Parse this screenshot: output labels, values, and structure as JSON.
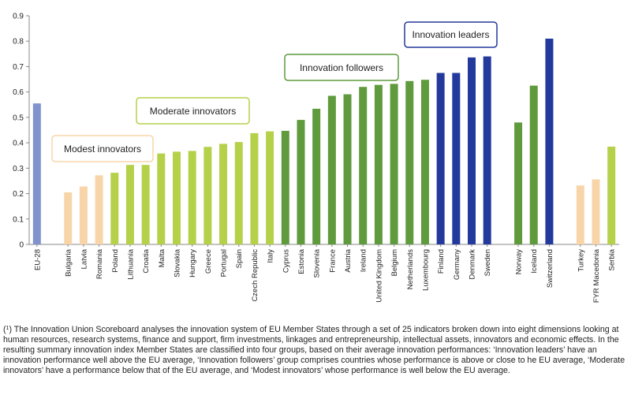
{
  "chart_data": {
    "type": "bar",
    "ylim": [
      0,
      0.9
    ],
    "yticks": [
      0,
      0.1,
      0.2,
      0.3,
      0.4,
      0.5,
      0.6,
      0.7,
      0.8,
      0.9
    ],
    "ytick_labels": [
      "0",
      "0.1",
      "0.2",
      "0.3",
      "0.4",
      "0.5",
      "0.6",
      "0.7",
      "0.8",
      "0.9"
    ],
    "grid": false,
    "colors": {
      "eu_average": "#8093cc",
      "modest_innovators": "#f8d5a8",
      "moderate_innovators": "#b5d14a",
      "innovation_followers": "#5f9a3d",
      "innovation_leaders": "#23399b"
    },
    "group_labels": {
      "modest_innovators": "Modest innovators",
      "moderate_innovators": "Moderate innovators",
      "innovation_followers": "Innovation followers",
      "innovation_leaders": "Innovation leaders"
    },
    "categories": [
      "EU-28",
      "",
      "Bulgaria",
      "Latvia",
      "Romania",
      "Poland",
      "Lithuania",
      "Croatia",
      "Malta",
      "Slovakia",
      "Hungary",
      "Greece",
      "Portugal",
      "Spain",
      "Czech Republic",
      "Italy",
      "Cyprus",
      "Estonia",
      "Slovenia",
      "France",
      "Austria",
      "Ireland",
      "United Kingdom",
      "Belgium",
      "Netherlands",
      "Luxembourg",
      "Finland",
      "Germany",
      "Denmark",
      "Sweden",
      "",
      "Norway",
      "Iceland",
      "Switzerland",
      "",
      "Turkey",
      "FYR Macedonia",
      "Serbia"
    ],
    "values": [
      0.555,
      null,
      0.205,
      0.228,
      0.272,
      0.282,
      0.313,
      0.313,
      0.358,
      0.365,
      0.368,
      0.384,
      0.396,
      0.403,
      0.438,
      0.445,
      0.447,
      0.49,
      0.534,
      0.585,
      0.591,
      0.62,
      0.628,
      0.632,
      0.643,
      0.648,
      0.675,
      0.675,
      0.736,
      0.74,
      null,
      0.48,
      0.625,
      0.81,
      null,
      0.232,
      0.256,
      0.385
    ],
    "groups": [
      "eu_average",
      null,
      "modest_innovators",
      "modest_innovators",
      "modest_innovators",
      "moderate_innovators",
      "moderate_innovators",
      "moderate_innovators",
      "moderate_innovators",
      "moderate_innovators",
      "moderate_innovators",
      "moderate_innovators",
      "moderate_innovators",
      "moderate_innovators",
      "moderate_innovators",
      "moderate_innovators",
      "innovation_followers",
      "innovation_followers",
      "innovation_followers",
      "innovation_followers",
      "innovation_followers",
      "innovation_followers",
      "innovation_followers",
      "innovation_followers",
      "innovation_followers",
      "innovation_followers",
      "innovation_leaders",
      "innovation_leaders",
      "innovation_leaders",
      "innovation_leaders",
      null,
      "innovation_followers",
      "innovation_followers",
      "innovation_leaders",
      null,
      "modest_innovators",
      "modest_innovators",
      "moderate_innovators"
    ]
  },
  "footnote": {
    "marker": "1",
    "text": " The Innovation Union Scoreboard analyses the innovation system of EU Member States through a set of 25 indicators broken down into eight dimensions looking at human resources, research systems, finance and support, firm investments, linkages and entrepreneurship, intellectual assets, innovators and economic effects. In the resulting summary innovation index Member States are classified into four groups, based on their average innovation performances: ‘Innovation leaders’ have an innovation performance well above the EU average, ‘Innovation followers’ group comprises countries whose performance is above or close to he EU average, ‘Moderate innovators’ have a performance below that of the EU average, and ‘Modest innovators’ whose performance is well below the EU average."
  }
}
